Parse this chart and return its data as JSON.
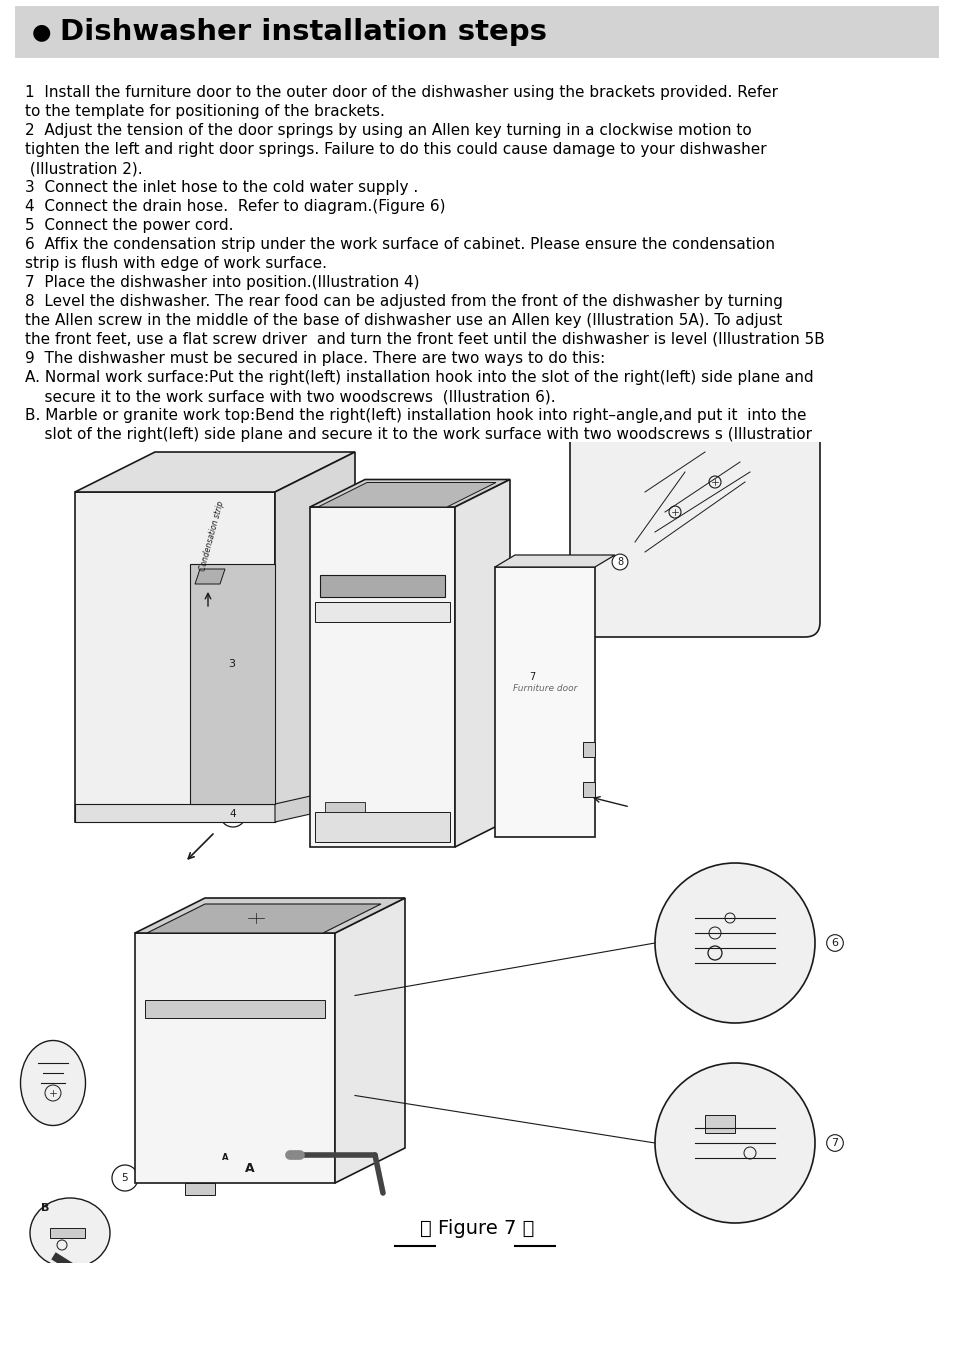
{
  "page_bg": "#ffffff",
  "header_bg": "#d3d3d3",
  "header_text": "Dishwasher installation steps",
  "header_bullet": "●",
  "body_fontsize": 11.0,
  "figure_label": "【 Figure 7 】",
  "steps": [
    {
      "num": "1",
      "text": "  Install the furniture door to the outer door of the dishwasher using the brackets provided. Refer\nto the template for positioning of the brackets."
    },
    {
      "num": "2",
      "text": "  Adjust the tension of the door springs by using an Allen key turning in a clockwise motion to\ntighten the left and right door springs. Failure to do this could cause damage to your dishwasher\n (Illustration 2)."
    },
    {
      "num": "3",
      "text": "  Connect the inlet hose to the cold water supply ."
    },
    {
      "num": "4",
      "text": "  Connect the drain hose.  Refer to diagram.(Figure 6)"
    },
    {
      "num": "5",
      "text": "  Connect the power cord."
    },
    {
      "num": "6",
      "text": "  Affix the condensation strip under the work surface of cabinet. Please ensure the condensation\nstrip is flush with edge of work surface."
    },
    {
      "num": "7",
      "text": "  Place the dishwasher into position.(Illustration 4)"
    },
    {
      "num": "8",
      "text": "  Level the dishwasher. The rear food can be adjusted from the front of the dishwasher by turning\nthe Allen screw in the middle of the base of dishwasher use an Allen key (Illustration 5A). To adjust\nthe front feet, use a flat screw driver  and turn the front feet until the dishwasher is level (Illustration 5B"
    },
    {
      "num": "9",
      "text": "  The dishwasher must be secured in place. There are two ways to do this:"
    },
    {
      "num": "A.",
      "text": " Normal work surface:Put the right(left) installation hook into the slot of the right(left) side plane and\n    secure it to the work surface with two woodscrews  (Illustration 6)."
    },
    {
      "num": "B.",
      "text": " Marble or granite work top:Bend the right(left) installation hook into right–angle,and put it  into the\n    slot of the right(left) side plane and secure it to the work surface with two woodscrews s (Illustratior"
    }
  ],
  "text_color": "#000000",
  "line_color": "#333333"
}
